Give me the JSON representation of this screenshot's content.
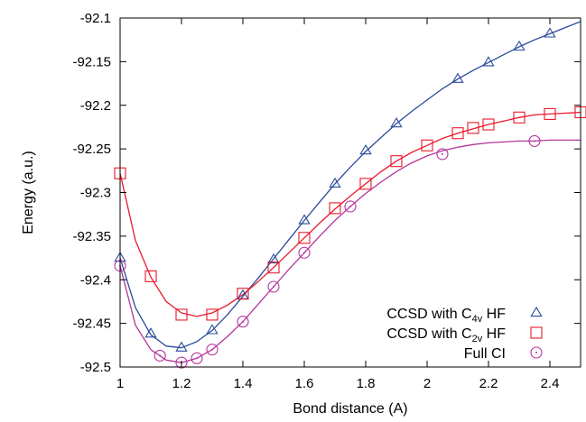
{
  "chart_data": {
    "type": "line",
    "title": "",
    "xlabel": "Bond distance (A)",
    "ylabel": "Energy (a.u.)",
    "xlim": [
      1.0,
      2.5
    ],
    "ylim": [
      -92.5,
      -92.1
    ],
    "xticks": [
      1,
      1.2,
      1.4,
      1.6,
      1.8,
      2,
      2.2,
      2.4
    ],
    "xtick_labels": [
      "1",
      "1.2",
      "1.4",
      "1.6",
      "1.8",
      "2",
      "2.2",
      "2.4"
    ],
    "yticks": [
      -92.1,
      -92.15,
      -92.2,
      -92.25,
      -92.3,
      -92.35,
      -92.4,
      -92.45,
      -92.5
    ],
    "ytick_labels": [
      "-92.1",
      "-92.15",
      "-92.2",
      "-92.25",
      "-92.3",
      "-92.35",
      "-92.4",
      "-92.45",
      "-92.5"
    ],
    "grid": false,
    "legend_position": "bottom-right",
    "series": [
      {
        "name": "CCSD with C4v HF",
        "name_base": "CCSD with C",
        "name_sub": "4v",
        "name_tail": " HF",
        "marker": "triangle",
        "color": "#2b4a9b",
        "x": [
          1.0,
          1.1,
          1.2,
          1.3,
          1.4,
          1.5,
          1.6,
          1.7,
          1.8,
          1.9,
          2.1,
          2.2,
          2.3,
          2.4
        ],
        "y": [
          -92.375,
          -92.462,
          -92.478,
          -92.458,
          -92.418,
          -92.377,
          -92.332,
          -92.29,
          -92.252,
          -92.221,
          -92.17,
          -92.151,
          -92.133,
          -92.118
        ]
      },
      {
        "name": "CCSD with C2v HF",
        "name_base": "CCSD with C",
        "name_sub": "2v",
        "name_tail": " HF",
        "marker": "square",
        "color": "#e8192c",
        "x": [
          1.0,
          1.1,
          1.2,
          1.3,
          1.4,
          1.5,
          1.6,
          1.7,
          1.8,
          1.9,
          2.0,
          2.1,
          2.15,
          2.2,
          2.3,
          2.4,
          2.5
        ],
        "y": [
          -92.278,
          -92.396,
          -92.44,
          -92.44,
          -92.416,
          -92.386,
          -92.352,
          -92.318,
          -92.29,
          -92.264,
          -92.246,
          -92.232,
          -92.226,
          -92.222,
          -92.214,
          -92.21,
          -92.208
        ]
      },
      {
        "name": "Full CI",
        "name_base": "Full CI",
        "name_sub": "",
        "name_tail": "",
        "marker": "circle",
        "color": "#b5359b",
        "x": [
          1.0,
          1.13,
          1.2,
          1.25,
          1.3,
          1.4,
          1.5,
          1.6,
          1.75,
          2.05,
          2.35
        ],
        "y": [
          -92.384,
          -92.487,
          -92.495,
          -92.49,
          -92.48,
          -92.448,
          -92.408,
          -92.369,
          -92.316,
          -92.256,
          -92.241
        ]
      }
    ],
    "fit_curves": [
      {
        "series": "CCSD with C4v HF",
        "x": [
          1.0,
          1.05,
          1.1,
          1.15,
          1.2,
          1.25,
          1.3,
          1.35,
          1.4,
          1.45,
          1.5,
          1.55,
          1.6,
          1.65,
          1.7,
          1.75,
          1.8,
          1.85,
          1.9,
          1.95,
          2.0,
          2.05,
          2.1,
          2.15,
          2.2,
          2.25,
          2.3,
          2.35,
          2.4,
          2.45,
          2.5
        ],
        "y": [
          -92.375,
          -92.432,
          -92.463,
          -92.476,
          -92.478,
          -92.471,
          -92.458,
          -92.44,
          -92.419,
          -92.398,
          -92.376,
          -92.354,
          -92.332,
          -92.311,
          -92.29,
          -92.271,
          -92.253,
          -92.237,
          -92.221,
          -92.207,
          -92.194,
          -92.181,
          -92.17,
          -92.16,
          -92.151,
          -92.142,
          -92.133,
          -92.125,
          -92.118,
          -92.111,
          -92.104
        ]
      },
      {
        "series": "CCSD with C2v HF",
        "x": [
          1.0,
          1.05,
          1.1,
          1.15,
          1.2,
          1.25,
          1.3,
          1.35,
          1.4,
          1.45,
          1.5,
          1.55,
          1.6,
          1.65,
          1.7,
          1.75,
          1.8,
          1.85,
          1.9,
          1.95,
          2.0,
          2.05,
          2.1,
          2.15,
          2.2,
          2.25,
          2.3,
          2.35,
          2.4,
          2.45,
          2.5
        ],
        "y": [
          -92.278,
          -92.355,
          -92.397,
          -92.425,
          -92.438,
          -92.442,
          -92.438,
          -92.429,
          -92.417,
          -92.402,
          -92.386,
          -92.369,
          -92.352,
          -92.335,
          -92.319,
          -92.304,
          -92.29,
          -92.276,
          -92.264,
          -92.254,
          -92.246,
          -92.238,
          -92.232,
          -92.227,
          -92.222,
          -92.218,
          -92.214,
          -92.211,
          -92.21,
          -92.209,
          -92.208
        ]
      },
      {
        "series": "Full CI",
        "x": [
          1.0,
          1.05,
          1.1,
          1.15,
          1.2,
          1.25,
          1.3,
          1.35,
          1.4,
          1.45,
          1.5,
          1.55,
          1.6,
          1.65,
          1.7,
          1.75,
          1.8,
          1.85,
          1.9,
          1.95,
          2.0,
          2.05,
          2.1,
          2.15,
          2.2,
          2.25,
          2.3,
          2.35,
          2.4,
          2.45,
          2.5
        ],
        "y": [
          -92.384,
          -92.452,
          -92.48,
          -92.492,
          -92.495,
          -92.49,
          -92.48,
          -92.465,
          -92.448,
          -92.428,
          -92.408,
          -92.388,
          -92.369,
          -92.35,
          -92.332,
          -92.316,
          -92.301,
          -92.288,
          -92.276,
          -92.266,
          -92.258,
          -92.252,
          -92.248,
          -92.245,
          -92.243,
          -92.242,
          -92.241,
          -92.241,
          -92.24,
          -92.24,
          -92.24
        ]
      }
    ]
  }
}
